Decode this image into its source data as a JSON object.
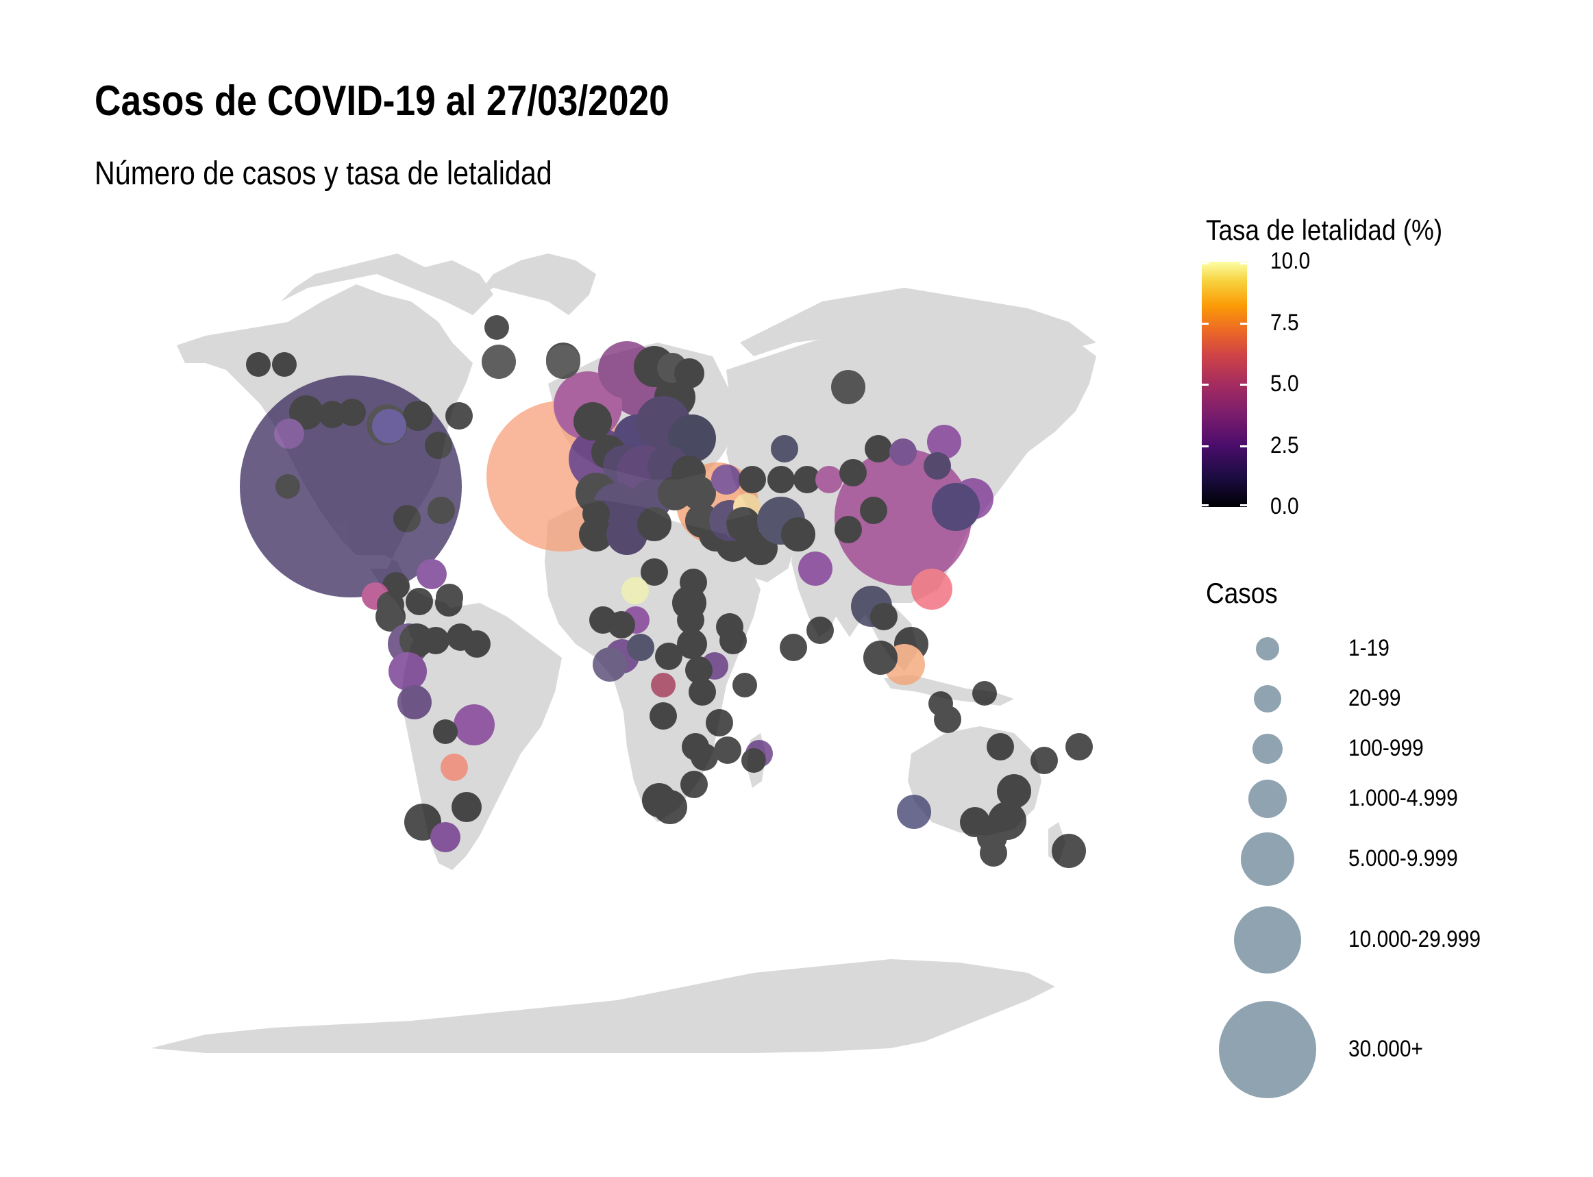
{
  "title": "Casos de COVID-19 al 27/03/2020",
  "subtitle": "Número de casos y tasa de letalidad",
  "legend_color": {
    "title": "Tasa de letalidad (%)",
    "ticks": [
      "10.0",
      "7.5",
      "5.0",
      "2.5",
      "0.0"
    ],
    "scale": "magma",
    "range": [
      0,
      10
    ]
  },
  "legend_size": {
    "title": "Casos",
    "color": "#8fa3b0",
    "items": [
      "1-19",
      "20-99",
      "100-999",
      "1.000-4.999",
      "5.000-9.999",
      "10.000-29.999",
      "30.000+"
    ]
  },
  "map_colors": {
    "land": "#d9d9d9",
    "background": "#ffffff"
  }
}
